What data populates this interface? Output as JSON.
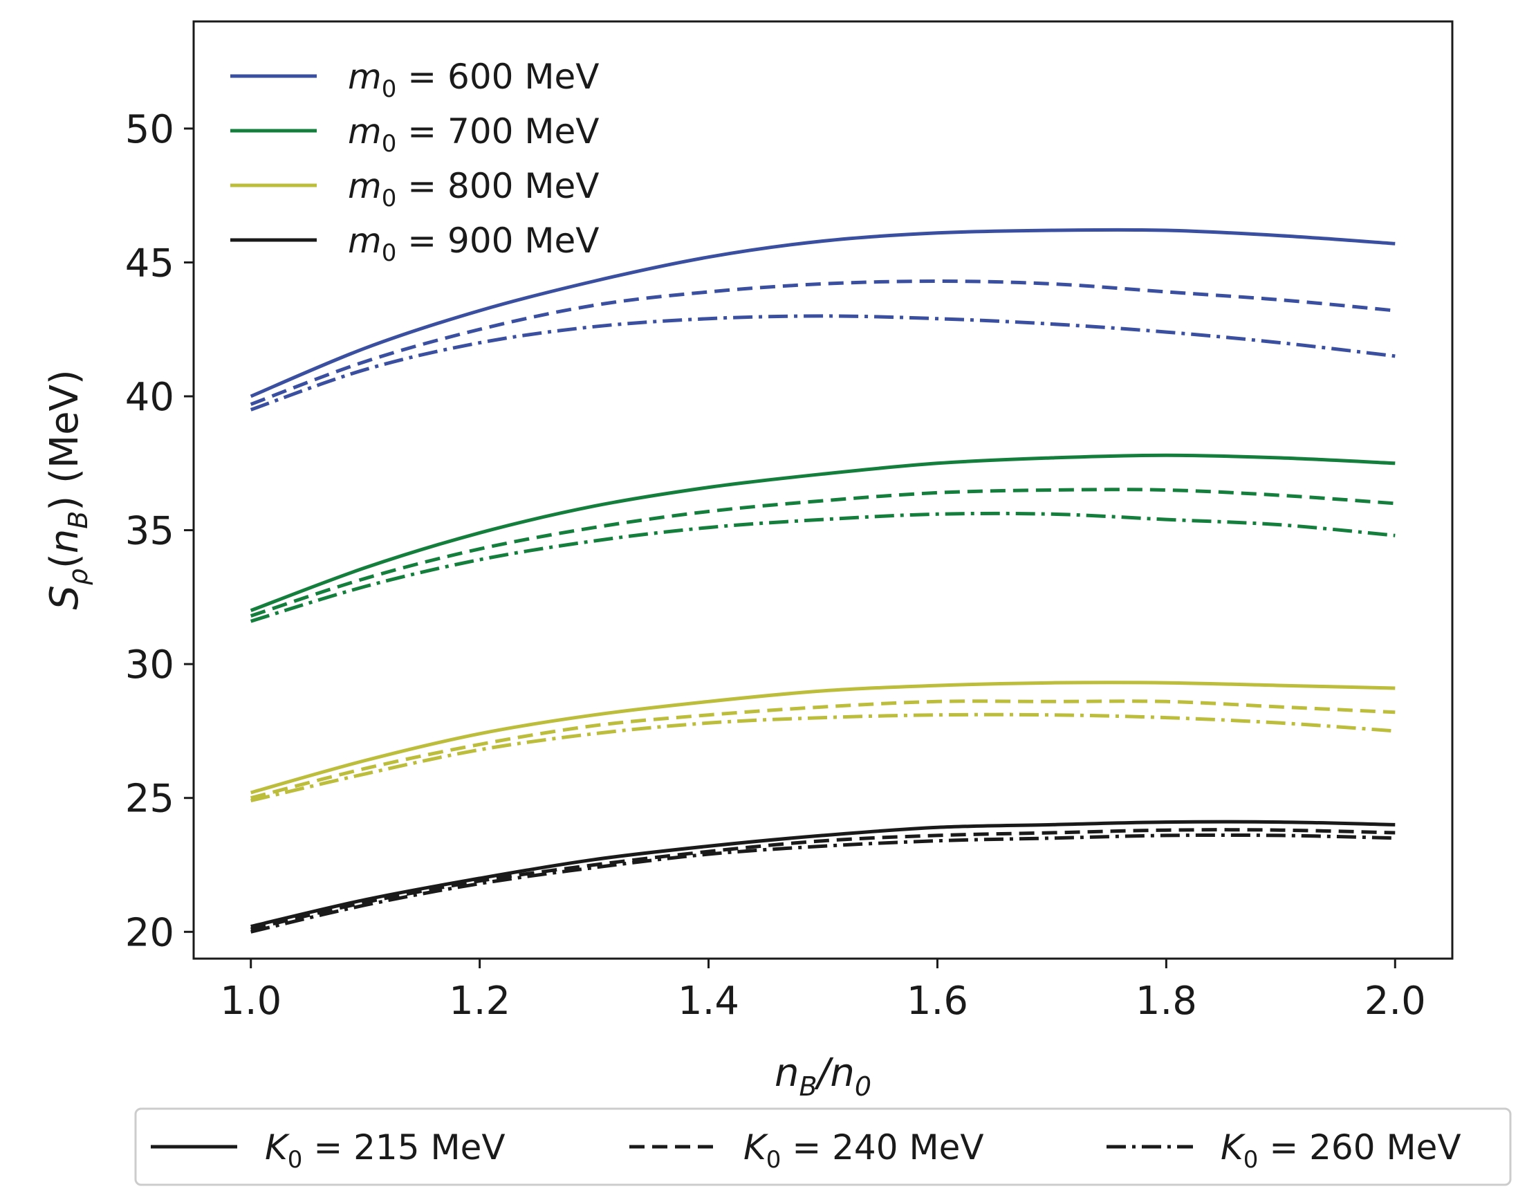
{
  "chart_data": {
    "type": "line",
    "title": "",
    "xlabel": "n_B/n_0",
    "ylabel": "S_ρ(n_B) (MeV)",
    "xlim": [
      0.95,
      2.05
    ],
    "ylim": [
      19,
      54
    ],
    "xticks": [
      1.0,
      1.2,
      1.4,
      1.6,
      1.8,
      2.0
    ],
    "xtick_labels": [
      "1.0",
      "1.2",
      "1.4",
      "1.6",
      "1.8",
      "2.0"
    ],
    "yticks": [
      20,
      25,
      30,
      35,
      40,
      45,
      50
    ],
    "ytick_labels": [
      "20",
      "25",
      "30",
      "35",
      "40",
      "45",
      "50"
    ],
    "grid": false,
    "x": [
      1.0,
      1.1,
      1.2,
      1.3,
      1.4,
      1.5,
      1.6,
      1.7,
      1.8,
      1.9,
      2.0
    ],
    "colors": {
      "m0_600": "#3a4fa0",
      "m0_700": "#147f3c",
      "m0_800": "#bcbd3a",
      "m0_900": "#1a1a1a"
    },
    "color_legend": {
      "placement": "top-left",
      "entries": [
        {
          "key": "m0_600",
          "prefix": "m",
          "sub": "0",
          "suffix": " = 600 MeV"
        },
        {
          "key": "m0_700",
          "prefix": "m",
          "sub": "0",
          "suffix": " = 700 MeV"
        },
        {
          "key": "m0_800",
          "prefix": "m",
          "sub": "0",
          "suffix": " = 800 MeV"
        },
        {
          "key": "m0_900",
          "prefix": "m",
          "sub": "0",
          "suffix": " = 900 MeV"
        }
      ]
    },
    "style_legend": {
      "placement": "bottom",
      "entries": [
        {
          "style": "solid",
          "prefix": "K",
          "sub": "0",
          "suffix": " = 215 MeV"
        },
        {
          "style": "dashed",
          "prefix": "K",
          "sub": "0",
          "suffix": " = 240 MeV"
        },
        {
          "style": "dashdot",
          "prefix": "K",
          "sub": "0",
          "suffix": " = 260 MeV"
        }
      ]
    },
    "series": [
      {
        "name": "m0=600, K0=215",
        "color": "m0_600",
        "style": "solid",
        "values": [
          40.0,
          41.8,
          43.2,
          44.3,
          45.2,
          45.8,
          46.1,
          46.2,
          46.2,
          46.0,
          45.7
        ]
      },
      {
        "name": "m0=600, K0=240",
        "color": "m0_600",
        "style": "dashed",
        "values": [
          39.7,
          41.3,
          42.5,
          43.4,
          43.9,
          44.2,
          44.3,
          44.2,
          43.9,
          43.6,
          43.2
        ]
      },
      {
        "name": "m0=600, K0=260",
        "color": "m0_600",
        "style": "dashdot",
        "values": [
          39.5,
          41.0,
          42.0,
          42.6,
          42.9,
          43.0,
          42.9,
          42.7,
          42.4,
          42.0,
          41.5
        ]
      },
      {
        "name": "m0=700, K0=215",
        "color": "m0_700",
        "style": "solid",
        "values": [
          32.0,
          33.6,
          34.9,
          35.9,
          36.6,
          37.1,
          37.5,
          37.7,
          37.8,
          37.7,
          37.5
        ]
      },
      {
        "name": "m0=700, K0=240",
        "color": "m0_700",
        "style": "dashed",
        "values": [
          31.8,
          33.2,
          34.3,
          35.1,
          35.7,
          36.1,
          36.4,
          36.5,
          36.5,
          36.3,
          36.0
        ]
      },
      {
        "name": "m0=700, K0=260",
        "color": "m0_700",
        "style": "dashdot",
        "values": [
          31.6,
          32.9,
          33.9,
          34.6,
          35.1,
          35.4,
          35.6,
          35.6,
          35.4,
          35.2,
          34.8
        ]
      },
      {
        "name": "m0=800, K0=215",
        "color": "m0_800",
        "style": "solid",
        "values": [
          25.2,
          26.4,
          27.4,
          28.1,
          28.6,
          29.0,
          29.2,
          29.3,
          29.3,
          29.2,
          29.1
        ]
      },
      {
        "name": "m0=800, K0=240",
        "color": "m0_800",
        "style": "dashed",
        "values": [
          25.0,
          26.1,
          27.0,
          27.7,
          28.1,
          28.4,
          28.6,
          28.6,
          28.6,
          28.4,
          28.2
        ]
      },
      {
        "name": "m0=800, K0=260",
        "color": "m0_800",
        "style": "dashdot",
        "values": [
          24.9,
          25.9,
          26.8,
          27.4,
          27.8,
          28.0,
          28.1,
          28.1,
          28.0,
          27.8,
          27.5
        ]
      },
      {
        "name": "m0=900, K0=215",
        "color": "m0_900",
        "style": "solid",
        "values": [
          20.2,
          21.2,
          22.0,
          22.7,
          23.2,
          23.6,
          23.9,
          24.0,
          24.1,
          24.1,
          24.0
        ]
      },
      {
        "name": "m0=900, K0=240",
        "color": "m0_900",
        "style": "dashed",
        "values": [
          20.1,
          21.1,
          21.9,
          22.5,
          23.0,
          23.4,
          23.6,
          23.7,
          23.8,
          23.8,
          23.7
        ]
      },
      {
        "name": "m0=900, K0=260",
        "color": "m0_900",
        "style": "dashdot",
        "values": [
          20.0,
          21.0,
          21.8,
          22.4,
          22.9,
          23.2,
          23.4,
          23.5,
          23.6,
          23.6,
          23.5
        ]
      }
    ]
  }
}
